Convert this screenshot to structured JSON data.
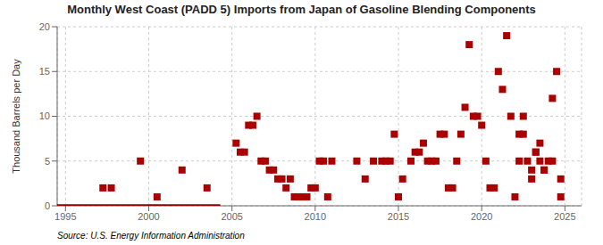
{
  "chart_data": {
    "type": "scatter",
    "title": "Monthly West Coast (PADD 5) Imports from Japan of Gasoline Blending Components",
    "y_label": "Thousand Barrels per Day",
    "annotation": "Source: U.S. Energy Information Administration",
    "xlim": [
      1994.5,
      2026.0
    ],
    "ylim": [
      0,
      20
    ],
    "xticks": [
      1995,
      2000,
      2005,
      2010,
      2015,
      2020,
      2025
    ],
    "yticks": [
      0,
      5,
      10,
      15,
      20
    ],
    "grid": true,
    "series": [
      {
        "type": "line",
        "color": "#8b0000",
        "line_style": "solid",
        "x": [
          1994.5,
          2004.3
        ],
        "values": [
          0,
          0
        ]
      },
      {
        "type": "scatter",
        "color": "#aa0000",
        "marker": "square",
        "x": [
          1997.25,
          1997.75,
          1999.5,
          2000.5,
          2002.0,
          2003.5,
          2005.25,
          2005.5,
          2005.75,
          2006.0,
          2006.25,
          2006.5,
          2006.75,
          2007.0,
          2007.25,
          2007.5,
          2007.75,
          2008.0,
          2008.25,
          2008.5,
          2008.75,
          2009.0,
          2009.25,
          2009.5,
          2009.75,
          2010.0,
          2010.25,
          2010.5,
          2010.75,
          2011.0,
          2012.5,
          2013.0,
          2013.5,
          2014.0,
          2014.25,
          2014.5,
          2014.75,
          2015.0,
          2015.25,
          2015.75,
          2016.0,
          2016.25,
          2016.5,
          2016.75,
          2017.0,
          2017.25,
          2017.5,
          2017.75,
          2018.0,
          2018.25,
          2018.5,
          2018.75,
          2019.0,
          2019.25,
          2019.5,
          2019.75,
          2020.0,
          2020.25,
          2020.5,
          2020.75,
          2021.0,
          2021.25,
          2021.5,
          2021.75,
          2022.0,
          2022.25,
          2022.25,
          2022.5,
          2022.5,
          2022.75,
          2023.0,
          2023.0,
          2023.25,
          2023.25,
          2023.5,
          2023.5,
          2023.75,
          2023.75,
          2024.0,
          2024.25,
          2024.25,
          2024.5,
          2024.75,
          2024.75
        ],
        "values": [
          2.0,
          2.0,
          5.0,
          1.0,
          4.0,
          2.0,
          7.0,
          6.0,
          6.0,
          9.0,
          9.0,
          10.0,
          5.0,
          5.0,
          4.0,
          4.0,
          3.0,
          3.0,
          2.0,
          3.0,
          1.0,
          1.0,
          1.0,
          1.0,
          2.0,
          2.0,
          5.0,
          5.0,
          1.0,
          5.0,
          5.0,
          3.0,
          5.0,
          5.0,
          5.0,
          5.0,
          8.0,
          1.0,
          3.0,
          5.0,
          6.0,
          6.0,
          7.0,
          5.0,
          5.0,
          5.0,
          8.0,
          8.0,
          2.0,
          2.0,
          5.0,
          8.0,
          11.0,
          18.0,
          10.0,
          10.0,
          9.0,
          5.0,
          2.0,
          2.0,
          15.0,
          13.0,
          19.0,
          10.0,
          1.0,
          5.0,
          8.0,
          8.0,
          10.0,
          5.0,
          4.0,
          3.0,
          6.0,
          6.0,
          7.0,
          5.0,
          4.0,
          4.0,
          5.0,
          5.0,
          12.0,
          15.0,
          3.0,
          1.0
        ]
      }
    ]
  }
}
